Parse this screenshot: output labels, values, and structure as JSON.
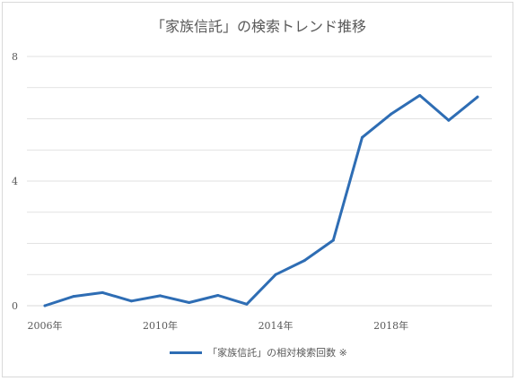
{
  "chart_data": {
    "type": "line",
    "title": "「家族信託」の検索トレンド推移",
    "x": [
      2006,
      2007,
      2008,
      2009,
      2010,
      2011,
      2012,
      2013,
      2014,
      2015,
      2016,
      2017,
      2018,
      2019,
      2020,
      2021
    ],
    "x_tick_labels": [
      "2006年",
      "2010年",
      "2014年",
      "2018年"
    ],
    "x_tick_values": [
      2006,
      2010,
      2014,
      2018
    ],
    "series": [
      {
        "name": "「家族信託」の相対検索回数 ※",
        "values": [
          0.0,
          0.3,
          0.42,
          0.15,
          0.32,
          0.1,
          0.33,
          0.05,
          1.0,
          1.45,
          2.1,
          5.4,
          6.15,
          6.75,
          5.95,
          6.7
        ]
      }
    ],
    "y_ticks": [
      0,
      4,
      8
    ],
    "ylim": [
      0,
      8
    ],
    "xlim": [
      2006,
      2021
    ],
    "grid": true,
    "legend_position": "bottom",
    "colors": {
      "line": "#2e6db4",
      "grid": "#d9d9d9"
    }
  }
}
